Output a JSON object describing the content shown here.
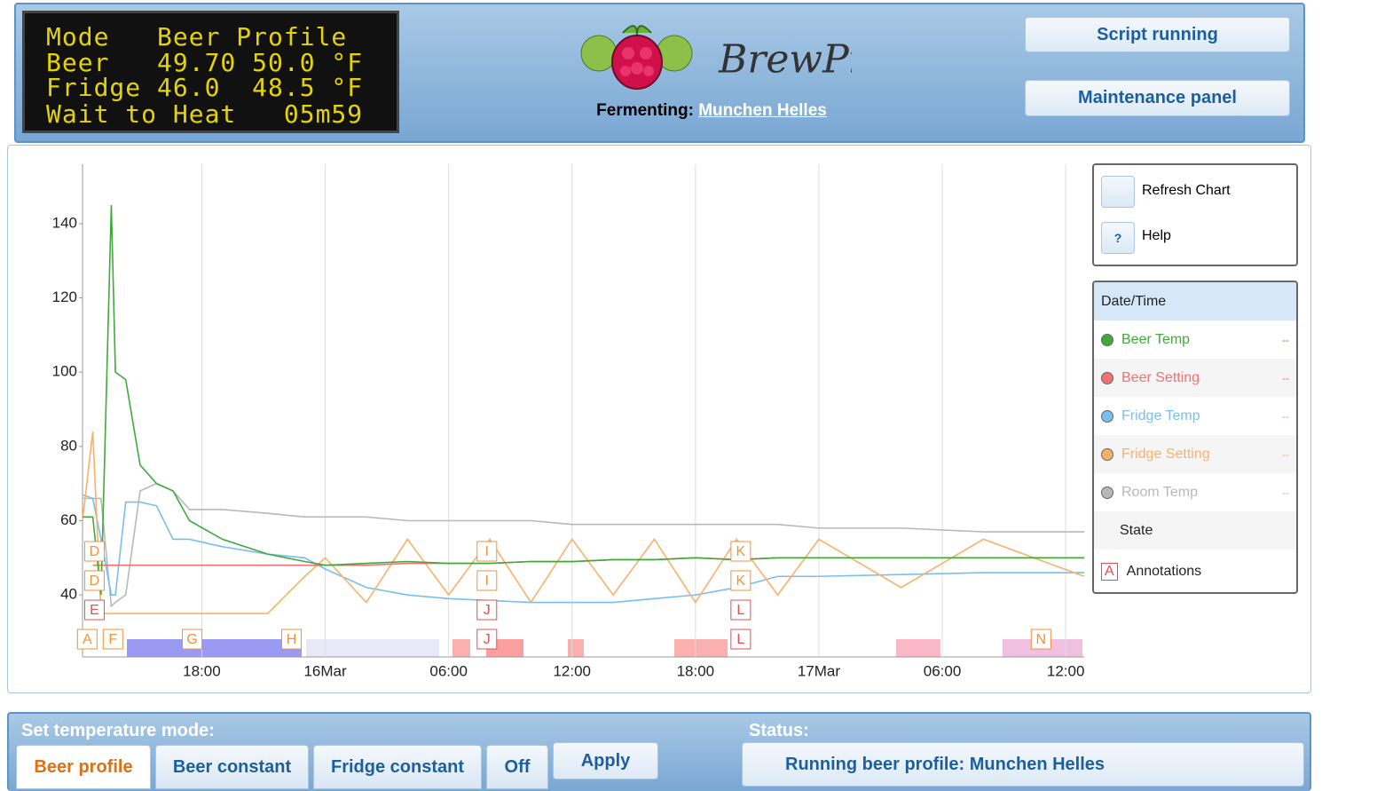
{
  "lcd": {
    "lines": [
      "Mode   Beer Profile",
      "Beer   49.70 50.0 °F",
      "Fridge 46.0  48.5 °F",
      "Wait to Heat   05m59"
    ]
  },
  "header": {
    "logo_text": "BrewPi",
    "fermenting_label": "Fermenting:",
    "profile_name": "Munchen Helles",
    "buttons": [
      "Script running",
      "Maintenance panel"
    ]
  },
  "chart_panel": {
    "buttons": [
      "Refresh Chart",
      "Help"
    ],
    "help_icon": "?"
  },
  "chart": {
    "type": "line",
    "grid": "x",
    "xlim": [
      -11.8,
      36.9
    ],
    "ylim": [
      23.3,
      156
    ],
    "xticks": [
      {
        "value": -6,
        "label": "18:00"
      },
      {
        "value": 0,
        "label": "16Mar"
      },
      {
        "value": 6,
        "label": "06:00"
      },
      {
        "value": 12,
        "label": "12:00"
      },
      {
        "value": 18,
        "label": "18:00"
      },
      {
        "value": 24,
        "label": "17Mar"
      },
      {
        "value": 30,
        "label": "06:00"
      },
      {
        "value": 36,
        "label": "12:00"
      }
    ],
    "yticks": [
      40,
      60,
      80,
      100,
      120,
      140
    ],
    "x": [
      -11.8,
      -11.3,
      -10.9,
      -10.4,
      -10.2,
      -9.7,
      -9,
      -8.2,
      -7.4,
      -6.6,
      -5,
      -2.8,
      -1,
      0,
      2,
      4,
      6,
      8,
      10,
      12,
      14,
      16,
      18,
      20,
      22,
      24,
      28,
      32,
      36.9
    ],
    "series": [
      {
        "name": "Beer Temp",
        "color": "#41a93c",
        "reading": "--",
        "values": [
          61,
          61,
          40,
          145,
          100,
          98,
          75,
          70,
          68,
          60,
          55,
          51,
          49,
          48,
          48.5,
          49,
          48.5,
          48.5,
          49,
          49,
          49.5,
          49.5,
          50,
          49.5,
          50,
          50,
          50,
          50,
          50
        ]
      },
      {
        "name": "Beer Setting",
        "color": "#f07272",
        "reading": "--",
        "values": [
          null,
          48,
          48,
          48,
          48,
          48,
          48,
          48,
          48,
          48,
          48,
          48,
          48,
          48,
          48,
          48.5,
          48.5,
          48.5,
          49,
          49,
          49.5,
          49.5,
          50,
          49.5,
          50,
          50,
          50,
          50,
          50
        ]
      },
      {
        "name": "Fridge Temp",
        "color": "#78bfee",
        "reading": "--",
        "values": [
          67,
          66,
          55,
          40,
          40,
          65,
          65,
          64,
          55,
          55,
          53,
          51,
          50,
          47,
          42,
          40,
          39,
          38.5,
          38,
          38,
          38,
          39,
          40,
          42,
          45,
          45,
          45.5,
          46,
          46
        ]
      },
      {
        "name": "Fridge Setting",
        "color": "#fbb068",
        "reading": "--",
        "values": [
          60,
          84,
          35,
          35,
          35,
          35,
          35,
          35,
          35,
          35,
          35,
          35,
          45,
          50,
          38,
          55,
          40,
          55,
          38,
          55,
          40,
          55,
          38,
          55,
          40,
          55,
          42,
          55,
          45
        ]
      },
      {
        "name": "Room Temp",
        "color": "#b8b8b8",
        "reading": "--",
        "values": [
          66,
          66,
          66,
          37,
          38,
          40,
          68,
          70,
          68,
          63,
          63,
          62,
          61,
          61,
          61,
          60,
          60,
          60,
          60,
          59,
          59,
          59,
          59,
          59,
          59,
          58,
          58,
          57,
          57
        ]
      }
    ],
    "legend_header": "Date/Time",
    "state_label": "State",
    "annotations_label": "Annotations",
    "annotations_symbol": "A",
    "annotations": [
      {
        "label": "A",
        "x": -11.57,
        "color": "#f0923c"
      },
      {
        "label": "E",
        "x": -11.22,
        "color": "#e05050"
      },
      {
        "label": "D",
        "x": -11.22,
        "color": "#f0923c"
      },
      {
        "label": "D",
        "x": -11.22,
        "color": "#f0923c"
      },
      {
        "label": "F",
        "x": -10.32,
        "color": "#f0923c"
      },
      {
        "label": "G",
        "x": -6.47,
        "color": "#f0923c"
      },
      {
        "label": "H",
        "x": -1.64,
        "color": "#f0923c"
      },
      {
        "label": "J",
        "x": 7.86,
        "color": "#e05050"
      },
      {
        "label": "J",
        "x": 7.86,
        "color": "#e05050"
      },
      {
        "label": "I",
        "x": 7.86,
        "color": "#f0923c"
      },
      {
        "label": "I",
        "x": 7.86,
        "color": "#f0923c"
      },
      {
        "label": "L",
        "x": 20.2,
        "color": "#e05050"
      },
      {
        "label": "L",
        "x": 20.2,
        "color": "#e05050"
      },
      {
        "label": "K",
        "x": 20.2,
        "color": "#f0923c"
      },
      {
        "label": "K",
        "x": 20.2,
        "color": "#f0923c"
      },
      {
        "label": "N",
        "x": 34.8,
        "color": "#f0923c"
      }
    ]
  },
  "control": {
    "mode_label": "Set temperature mode:",
    "modes": [
      "Beer profile",
      "Beer constant",
      "Fridge constant",
      "Off"
    ],
    "apply": "Apply",
    "status_label": "Status:",
    "status": "Running beer profile: Munchen Helles"
  }
}
